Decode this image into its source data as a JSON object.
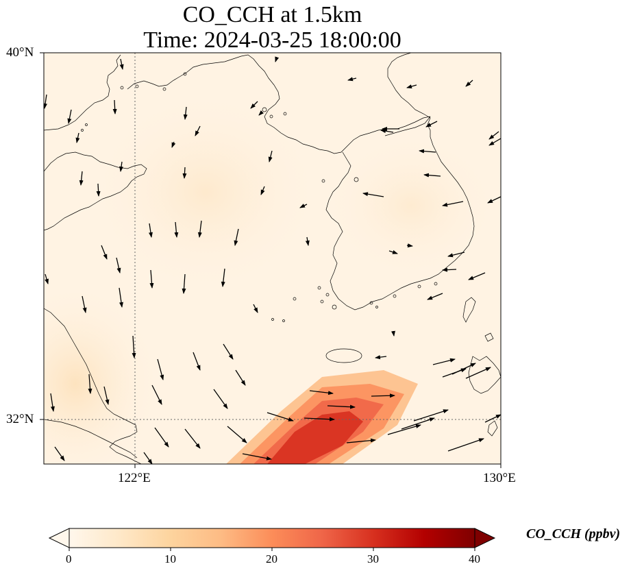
{
  "title": {
    "line1": "CO_CCH at 1.5km",
    "line2": "Time: 2024-03-25 18:00:00"
  },
  "map": {
    "extent": {
      "lon": [
        119.6,
        130
      ],
      "lat": [
        30.8,
        40
      ]
    },
    "gridlines": {
      "lon": [
        122
      ],
      "lat": [
        32
      ],
      "style": "dotted"
    },
    "tick_labels": {
      "lat_top": "40°N",
      "lat_bottom": "32°N",
      "lon_left": "122°E",
      "lon_right": "130°E"
    },
    "features": [
      "coastlines",
      "wind-vectors",
      "co-concentration-field"
    ],
    "plume_peak_ppbv": 30
  },
  "colorbar": {
    "title": "CO_CCH (ppbv)",
    "ticks": [
      "0",
      "10",
      "20",
      "30",
      "40"
    ],
    "colormap": "OrRd",
    "extend": "both",
    "colors": [
      "#fff7ec",
      "#fee8c8",
      "#fdd49e",
      "#fdbb84",
      "#fc8d59",
      "#ef6548",
      "#d7301f",
      "#b30000",
      "#7f0000"
    ]
  }
}
